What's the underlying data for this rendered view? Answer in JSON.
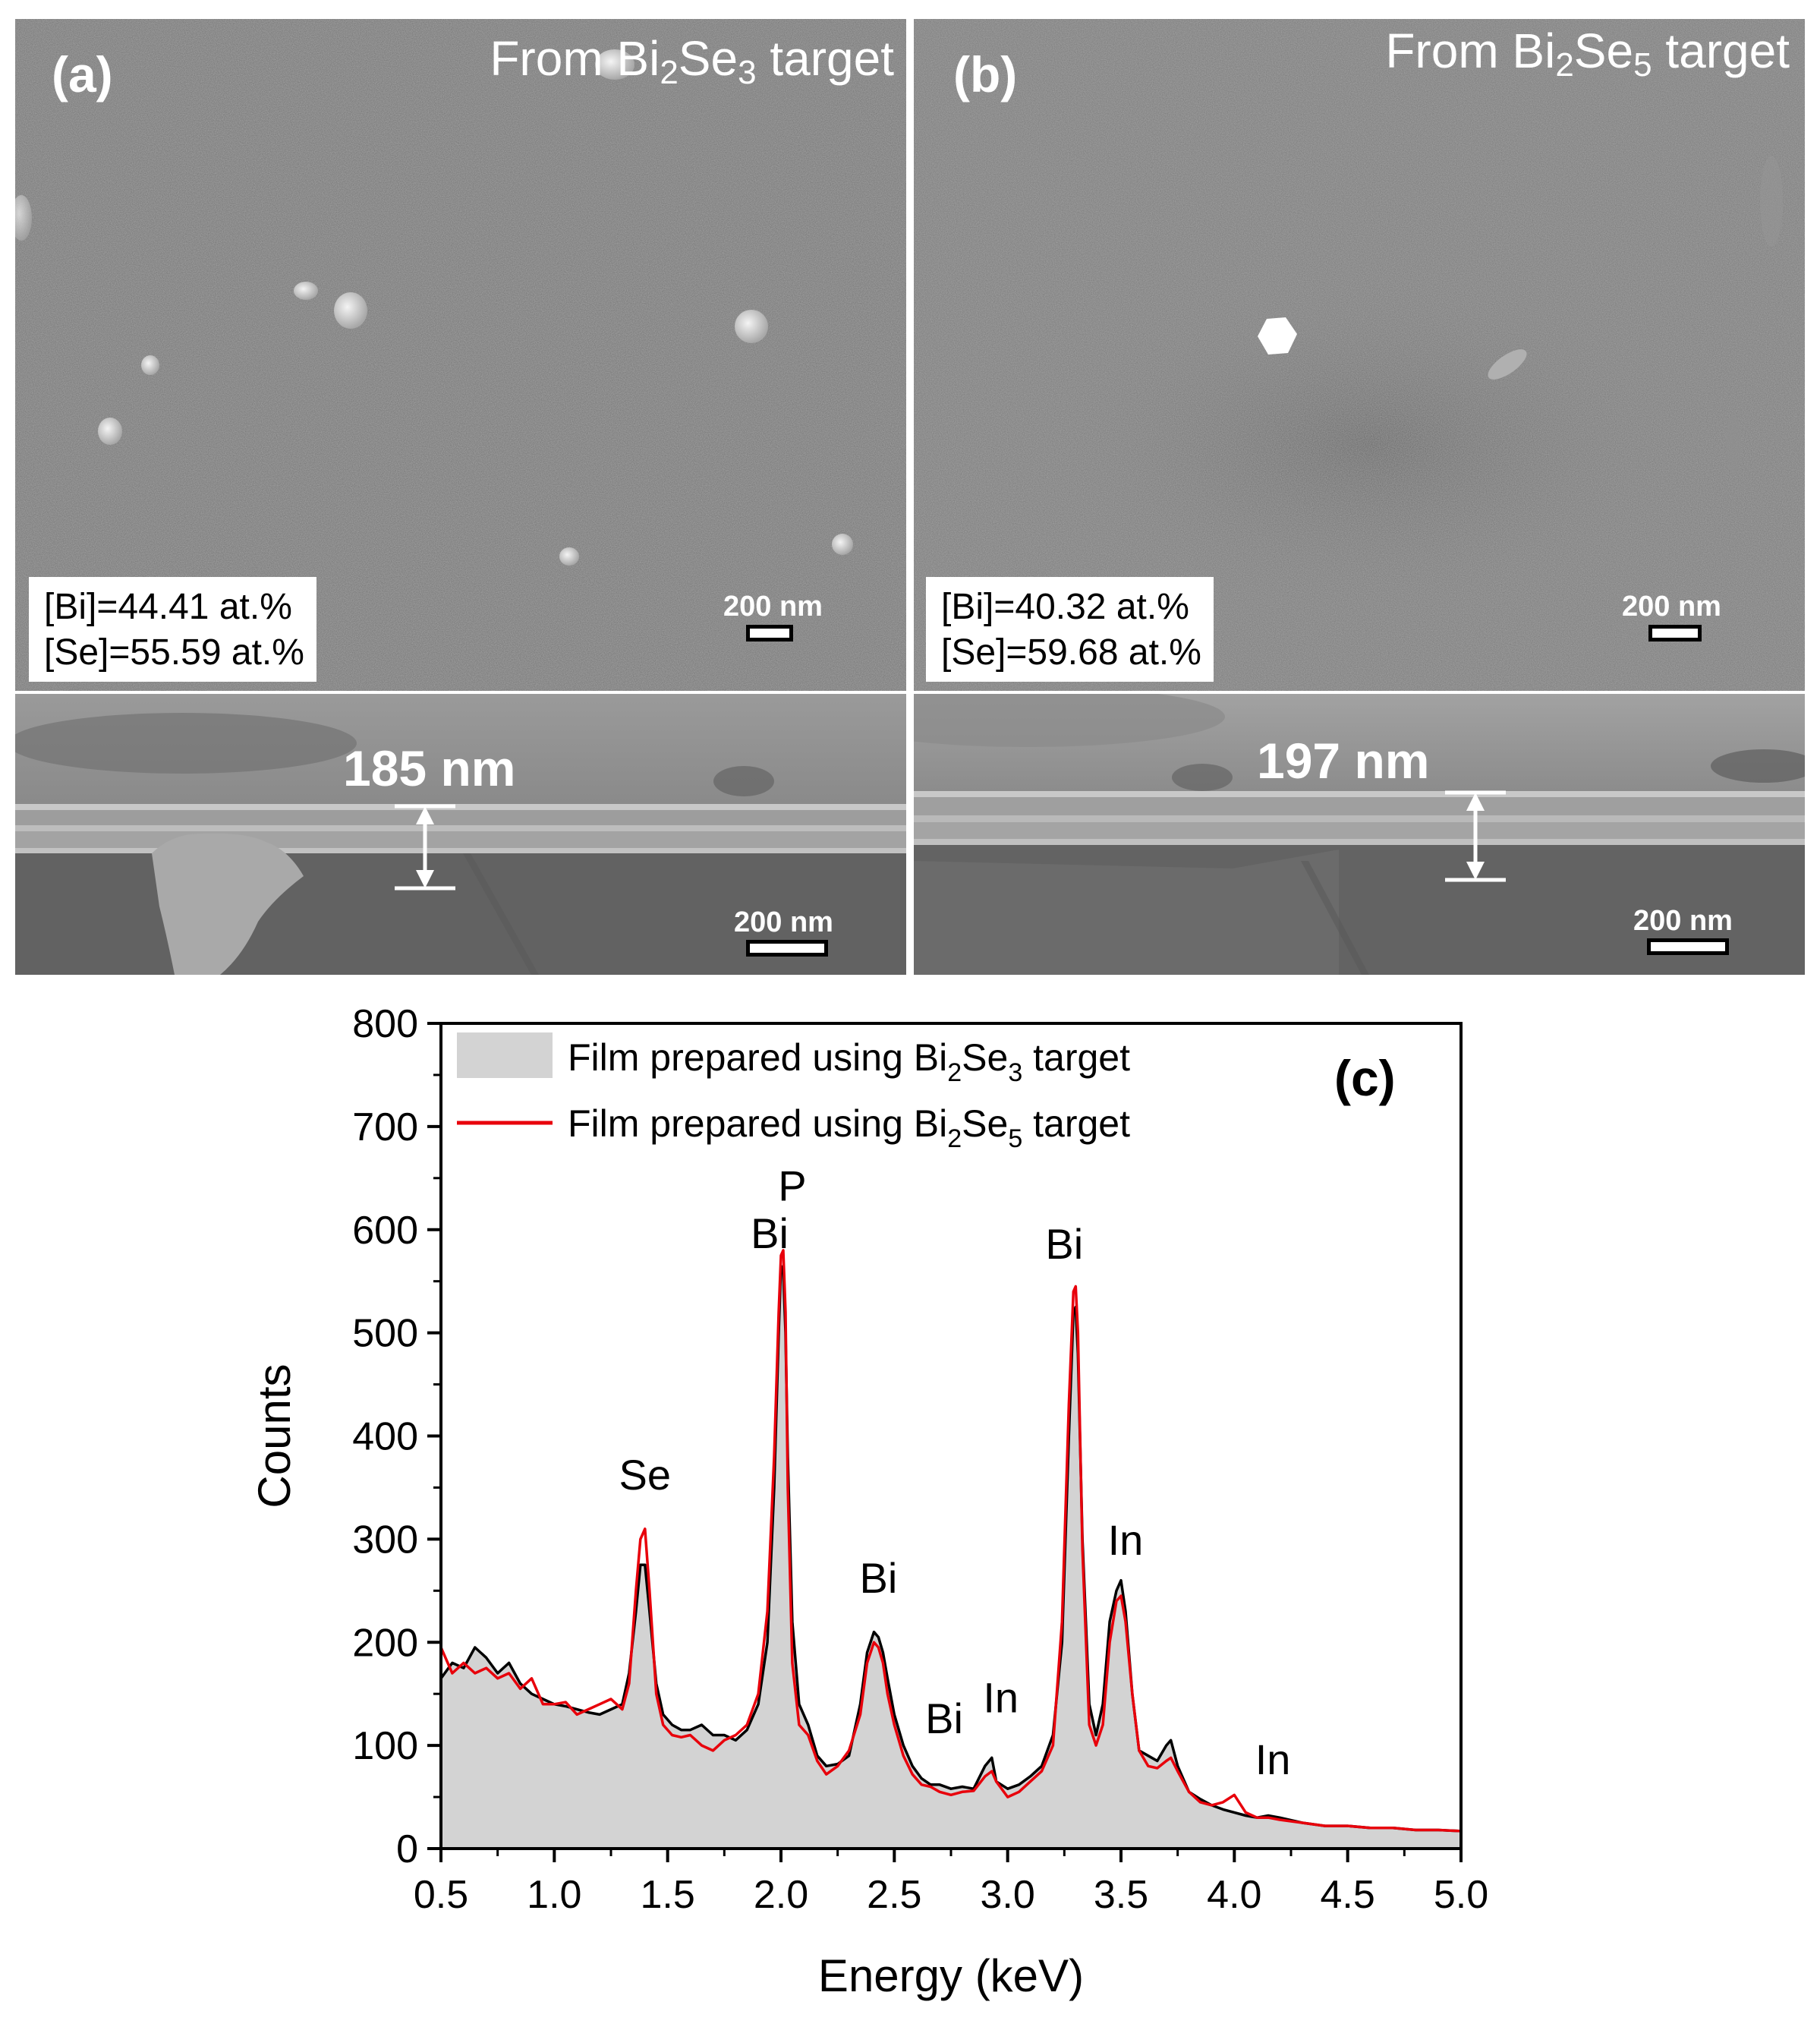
{
  "panel_a": {
    "label": "(a)",
    "target_prefix": "From Bi",
    "target_sub1": "2",
    "target_mid": "Se",
    "target_sub2": "3",
    "target_suffix": " target",
    "bi_composition": "[Bi]=44.41 at.%",
    "se_composition": "[Se]=55.59 at.%",
    "top_scale": "200 nm",
    "cross_section_thickness": "185 nm",
    "cross_section_scale": "200 nm"
  },
  "panel_b": {
    "label": "(b)",
    "target_prefix": "From Bi",
    "target_sub1": "2",
    "target_mid": "Se",
    "target_sub2": "5",
    "target_suffix": " target",
    "bi_composition": "[Bi]=40.32 at.%",
    "se_composition": "[Se]=59.68 at.%",
    "top_scale": "200 nm",
    "cross_section_thickness": "197 nm",
    "cross_section_scale": "200 nm"
  },
  "colors": {
    "bi2se3_fill": "#d3d3d3",
    "bi2se3_line": "#000000",
    "bi2se5_line": "#e8000b"
  },
  "chart_data": {
    "type": "area",
    "panel_label": "(c)",
    "xlabel": "Energy (keV)",
    "ylabel": "Counts",
    "xlim": [
      0.5,
      5.0
    ],
    "ylim": [
      0,
      800
    ],
    "x_ticks": [
      0.5,
      1.0,
      1.5,
      2.0,
      2.5,
      3.0,
      3.5,
      4.0,
      4.5,
      5.0
    ],
    "x_tick_labels": [
      "0.5",
      "1.0",
      "1.5",
      "2.0",
      "2.5",
      "3.0",
      "3.5",
      "4.0",
      "4.5",
      "5.0"
    ],
    "y_ticks": [
      0,
      100,
      200,
      300,
      400,
      500,
      600,
      700,
      800
    ],
    "y_tick_labels": [
      "0",
      "100",
      "200",
      "300",
      "400",
      "500",
      "600",
      "700",
      "800"
    ],
    "legend_position": "top-left",
    "legend": [
      {
        "prefix": "Film prepared using Bi",
        "sub1": "2",
        "mid": "Se",
        "sub2": "3",
        "suffix": " target",
        "style": "filled-area"
      },
      {
        "prefix": "Film prepared using Bi",
        "sub1": "2",
        "mid": "Se",
        "sub2": "5",
        "suffix": " target",
        "style": "line"
      }
    ],
    "series": [
      {
        "x": [
          0.5,
          0.55,
          0.6,
          0.65,
          0.7,
          0.75,
          0.8,
          0.85,
          0.9,
          0.95,
          1.0,
          1.05,
          1.1,
          1.15,
          1.2,
          1.25,
          1.3,
          1.33,
          1.36,
          1.38,
          1.4,
          1.42,
          1.45,
          1.48,
          1.52,
          1.56,
          1.6,
          1.65,
          1.7,
          1.75,
          1.8,
          1.85,
          1.9,
          1.94,
          1.97,
          1.99,
          2.0,
          2.01,
          2.02,
          2.03,
          2.05,
          2.08,
          2.12,
          2.16,
          2.2,
          2.25,
          2.3,
          2.35,
          2.38,
          2.41,
          2.43,
          2.45,
          2.47,
          2.5,
          2.54,
          2.58,
          2.62,
          2.66,
          2.7,
          2.75,
          2.8,
          2.85,
          2.9,
          2.93,
          2.95,
          3.0,
          3.05,
          3.1,
          3.15,
          3.2,
          3.24,
          3.27,
          3.29,
          3.3,
          3.31,
          3.33,
          3.36,
          3.39,
          3.42,
          3.45,
          3.48,
          3.5,
          3.52,
          3.55,
          3.58,
          3.62,
          3.66,
          3.7,
          3.72,
          3.75,
          3.8,
          3.85,
          3.9,
          3.95,
          4.0,
          4.05,
          4.1,
          4.15,
          4.2,
          4.3,
          4.4,
          4.5,
          4.6,
          4.7,
          4.8,
          4.9,
          5.0
        ],
        "values": [
          165,
          180,
          175,
          195,
          185,
          170,
          180,
          160,
          150,
          145,
          140,
          138,
          135,
          132,
          130,
          135,
          140,
          170,
          230,
          275,
          275,
          230,
          160,
          130,
          120,
          115,
          115,
          120,
          110,
          110,
          105,
          115,
          140,
          200,
          350,
          500,
          565,
          560,
          500,
          380,
          220,
          140,
          120,
          90,
          80,
          82,
          90,
          140,
          190,
          210,
          205,
          190,
          165,
          130,
          100,
          80,
          68,
          62,
          62,
          58,
          60,
          58,
          80,
          88,
          65,
          58,
          62,
          70,
          80,
          110,
          200,
          400,
          520,
          525,
          480,
          300,
          140,
          110,
          140,
          220,
          250,
          260,
          230,
          150,
          95,
          90,
          85,
          100,
          105,
          80,
          55,
          48,
          42,
          38,
          35,
          32,
          30,
          32,
          30,
          25,
          22,
          22,
          20,
          20,
          18,
          18,
          17
        ]
      },
      {
        "x": [
          0.5,
          0.55,
          0.6,
          0.65,
          0.7,
          0.75,
          0.8,
          0.85,
          0.9,
          0.95,
          1.0,
          1.05,
          1.1,
          1.15,
          1.2,
          1.25,
          1.3,
          1.33,
          1.36,
          1.38,
          1.4,
          1.42,
          1.45,
          1.48,
          1.52,
          1.56,
          1.6,
          1.65,
          1.7,
          1.75,
          1.8,
          1.85,
          1.9,
          1.94,
          1.97,
          1.99,
          2.0,
          2.01,
          2.02,
          2.03,
          2.05,
          2.08,
          2.12,
          2.16,
          2.2,
          2.25,
          2.3,
          2.35,
          2.38,
          2.41,
          2.43,
          2.45,
          2.47,
          2.5,
          2.54,
          2.58,
          2.62,
          2.66,
          2.7,
          2.75,
          2.8,
          2.85,
          2.9,
          2.93,
          2.95,
          3.0,
          3.05,
          3.1,
          3.15,
          3.2,
          3.24,
          3.27,
          3.29,
          3.3,
          3.31,
          3.33,
          3.36,
          3.39,
          3.42,
          3.45,
          3.48,
          3.5,
          3.52,
          3.55,
          3.58,
          3.62,
          3.66,
          3.7,
          3.72,
          3.75,
          3.8,
          3.85,
          3.9,
          3.95,
          4.0,
          4.05,
          4.1,
          4.15,
          4.2,
          4.3,
          4.4,
          4.5,
          4.6,
          4.7,
          4.8,
          4.9,
          5.0
        ],
        "values": [
          195,
          170,
          180,
          170,
          175,
          165,
          170,
          155,
          165,
          140,
          140,
          142,
          130,
          135,
          140,
          145,
          135,
          160,
          250,
          300,
          310,
          250,
          150,
          120,
          110,
          108,
          110,
          100,
          95,
          105,
          110,
          120,
          150,
          230,
          380,
          520,
          575,
          580,
          520,
          350,
          180,
          120,
          110,
          85,
          72,
          80,
          95,
          130,
          180,
          200,
          195,
          180,
          150,
          120,
          90,
          72,
          62,
          60,
          55,
          52,
          55,
          56,
          70,
          75,
          65,
          50,
          55,
          65,
          75,
          100,
          220,
          430,
          540,
          545,
          500,
          290,
          120,
          100,
          120,
          200,
          240,
          245,
          220,
          150,
          95,
          80,
          78,
          85,
          88,
          75,
          55,
          45,
          42,
          45,
          52,
          35,
          30,
          30,
          28,
          25,
          22,
          22,
          20,
          20,
          18,
          18,
          17
        ]
      }
    ],
    "annotations": [
      {
        "text": "Se",
        "x": 1.4,
        "y": 348
      },
      {
        "text": "Bi",
        "x": 1.95,
        "y": 582
      },
      {
        "text": "P",
        "x": 2.05,
        "y": 628
      },
      {
        "text": "Bi",
        "x": 2.43,
        "y": 248
      },
      {
        "text": "Bi",
        "x": 2.72,
        "y": 112
      },
      {
        "text": "In",
        "x": 2.97,
        "y": 132
      },
      {
        "text": "Bi",
        "x": 3.25,
        "y": 572
      },
      {
        "text": "In",
        "x": 3.52,
        "y": 285
      },
      {
        "text": "In",
        "x": 4.17,
        "y": 72
      }
    ]
  }
}
